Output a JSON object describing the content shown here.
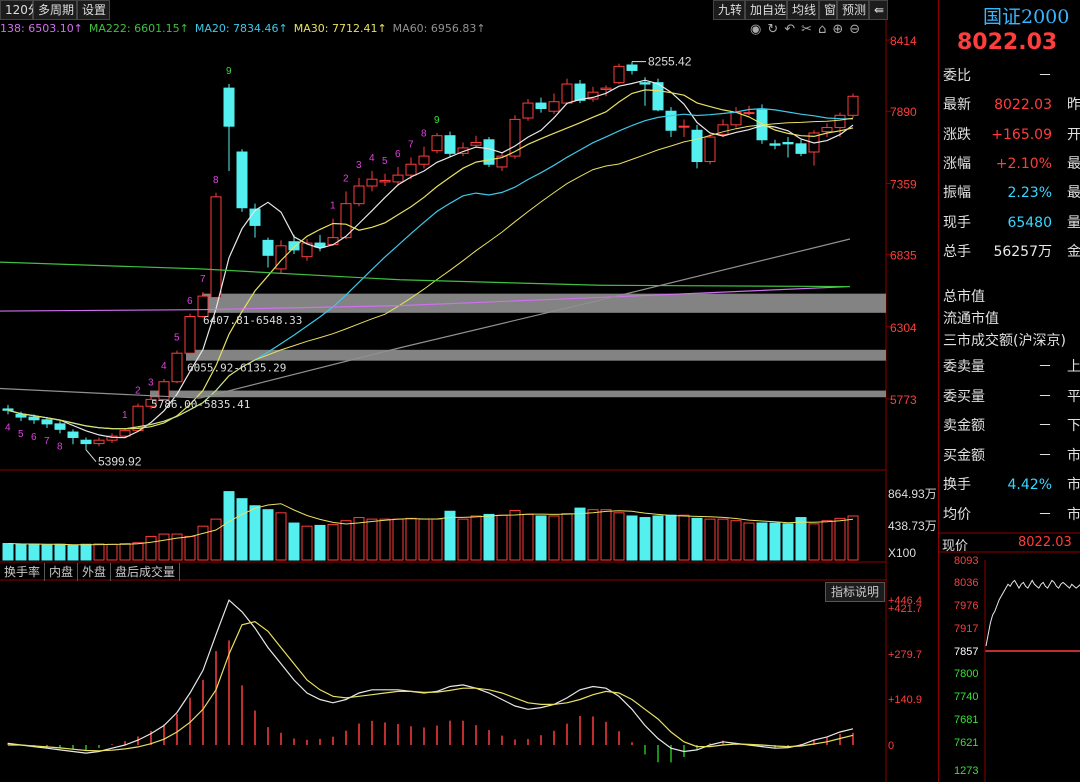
{
  "toolbar": {
    "left_tabs": [
      "120分",
      "多周期",
      "设置"
    ],
    "right_buttons": [
      "九转",
      "加自选",
      "均线",
      "窗",
      "预测"
    ],
    "back_icon": "back-arrow-icon",
    "tool_icons": [
      "eye-icon",
      "refresh-icon",
      "undo-icon",
      "scissors-icon",
      "lock-icon",
      "zoom-in-icon",
      "zoom-out-icon"
    ]
  },
  "ma_legend": [
    {
      "label": "138: 6503.10↑",
      "color": "#d070f0"
    },
    {
      "label": "MA222: 6601.15↑",
      "color": "#40c040"
    },
    {
      "label": "MA20: 7834.46↑",
      "color": "#3ec8e8"
    },
    {
      "label": "MA30: 7712.41↑",
      "color": "#e8e060"
    },
    {
      "label": "MA60: 6956.83↑",
      "color": "#909090"
    }
  ],
  "price_axis": [
    "8414",
    "7890",
    "7359",
    "6835",
    "6304",
    "5773"
  ],
  "vol_axis": [
    "864.93万",
    "438.73万",
    "X100"
  ],
  "ind_axis": [
    "+446.4",
    "+421.7",
    "+279.7",
    "+140.9",
    "0"
  ],
  "annotations": {
    "high_label": "8255.42",
    "low_label": "5399.92",
    "zone1": "6407.81-6548.33",
    "zone2": "6055.92-6135.29",
    "zone3": "5786.00-5835.41"
  },
  "td_counts": {
    "early": [
      "4",
      "5",
      "6",
      "7",
      "8"
    ],
    "rise1": [
      "1",
      "2",
      "3",
      "4",
      "5",
      "6",
      "7",
      "8",
      "9"
    ],
    "rise2": [
      "1",
      "2",
      "3",
      "4",
      "5",
      "6",
      "7",
      "8",
      "9"
    ]
  },
  "bottom_tabs": [
    "换手率",
    "内盘",
    "外盘",
    "盘后成交量"
  ],
  "indicator_button": "指标说明",
  "side_panel": {
    "name": "国证2000",
    "price": "8022.03",
    "rows": [
      {
        "label": "委比",
        "value": "－",
        "extra": ""
      },
      {
        "label": "最新",
        "value": "8022.03",
        "extra": "昨"
      },
      {
        "label": "涨跌",
        "value": "+165.09",
        "extra": "开"
      },
      {
        "label": "涨幅",
        "value": "+2.10%",
        "extra": "最"
      },
      {
        "label": "振幅",
        "value": "2.23%",
        "extra": "最"
      },
      {
        "label": "现手",
        "value": "65480",
        "extra": "量"
      },
      {
        "label": "总手",
        "value": "56257万",
        "extra": "金"
      }
    ],
    "info_rows": [
      "总市值",
      "流通市值",
      "三市成交额(沪深京)"
    ],
    "rows2": [
      {
        "label": "委卖量",
        "value": "－",
        "extra": "上"
      },
      {
        "label": "委买量",
        "value": "－",
        "extra": "平"
      },
      {
        "label": "卖金额",
        "value": "－",
        "extra": "下"
      },
      {
        "label": "买金额",
        "value": "－",
        "extra": "市"
      },
      {
        "label": "换手",
        "value": "4.42%",
        "extra": "市"
      },
      {
        "label": "均价",
        "value": "－",
        "extra": "市"
      }
    ],
    "current_price_label": "现价",
    "current_price_value": "8022.03",
    "mini_axis": [
      "8093",
      "8036",
      "7976",
      "7917",
      "7857",
      "7800",
      "7740",
      "7681",
      "7621",
      "1273"
    ]
  },
  "colors": {
    "up": "#ff3d3d",
    "down": "#54f0f0",
    "bg": "#000000"
  }
}
